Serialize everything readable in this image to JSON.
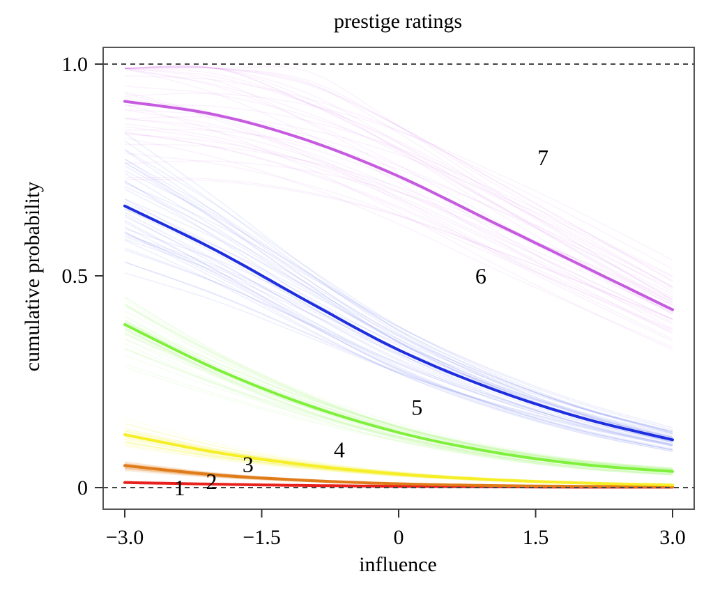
{
  "chart_data": {
    "type": "line",
    "title": "prestige ratings",
    "xlabel": "influence",
    "ylabel": "cumulative probability",
    "xlim": [
      -3.0,
      3.0
    ],
    "ylim": [
      0,
      1.0
    ],
    "x_ticks": [
      -3.0,
      -1.5,
      0,
      1.5,
      3.0
    ],
    "x_tick_labels": [
      "−3.0",
      "−1.5",
      "0",
      "1.5",
      "3.0"
    ],
    "y_ticks": [
      0,
      0.5,
      1.0
    ],
    "y_tick_labels": [
      "0",
      "0.5",
      "1.0"
    ],
    "reference_lines_y": [
      0,
      1.0
    ],
    "grid": false,
    "posterior_sample_lines": true,
    "x": [
      -3.0,
      -2.0,
      -1.0,
      0.0,
      1.0,
      2.0,
      3.0
    ],
    "series": [
      {
        "label": "1",
        "color": "#e8211c",
        "values": [
          0.012,
          0.008,
          0.005,
          0.003,
          0.002,
          0.001,
          0.001
        ],
        "label_pos": {
          "x": -2.4,
          "y": 0.0
        }
      },
      {
        "label": "2",
        "color": "#e07b1a",
        "values": [
          0.052,
          0.03,
          0.017,
          0.009,
          0.005,
          0.003,
          0.002
        ],
        "label_pos": {
          "x": -2.05,
          "y": 0.015
        }
      },
      {
        "label": "3",
        "color": "#f6ee26",
        "values": [
          0.125,
          0.083,
          0.053,
          0.032,
          0.019,
          0.011,
          0.006
        ],
        "label_pos": {
          "x": -1.65,
          "y": 0.055
        }
      },
      {
        "label": "4",
        "color": "#7ff03c",
        "values": [
          0.385,
          0.28,
          0.195,
          0.13,
          0.085,
          0.055,
          0.038
        ],
        "label_pos": {
          "x": -0.65,
          "y": 0.09
        }
      },
      {
        "label": "5",
        "color": "#1f2fe0",
        "values": [
          0.665,
          0.56,
          0.44,
          0.325,
          0.235,
          0.165,
          0.113
        ],
        "label_pos": {
          "x": 0.2,
          "y": 0.19
        }
      },
      {
        "label": "6",
        "color": "#c65be0",
        "values": [
          0.912,
          0.88,
          0.82,
          0.735,
          0.63,
          0.525,
          0.42
        ],
        "label_pos": {
          "x": 0.9,
          "y": 0.5
        }
      },
      {
        "label": "7",
        "color": "#c65be0",
        "values": null,
        "label_pos": {
          "x": 1.58,
          "y": 0.78
        }
      }
    ]
  }
}
